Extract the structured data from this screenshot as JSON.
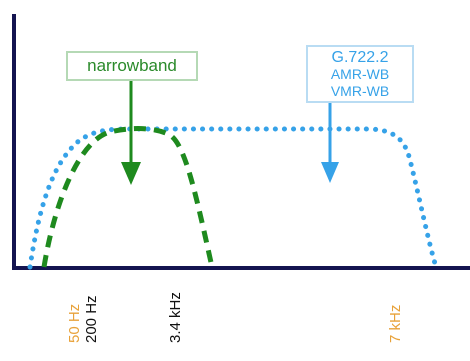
{
  "labels": {
    "narrowband": "narrowband",
    "wideband_lines": [
      "G.722.2",
      "AMR-WB",
      "VMR-WB"
    ]
  },
  "ticks": {
    "hz50": "50 Hz",
    "hz200": "200 Hz",
    "khz34": "3.4 kHz",
    "khz7": "7 kHz"
  },
  "colors": {
    "narrowband": "#1e8a1e",
    "wideband": "#36a2e8",
    "axis": "#141450",
    "orange_tick": "#e8a23a",
    "dark_tick": "#111111"
  }
}
